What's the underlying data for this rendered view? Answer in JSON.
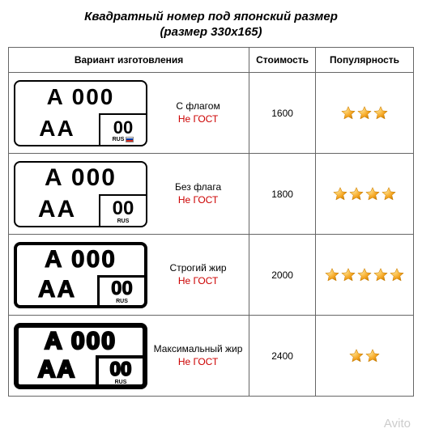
{
  "title": "Квадратный номер под японский размер",
  "subtitle": "(размер 330х165)",
  "headers": {
    "variant": "Вариант изготовления",
    "cost": "Стоимость",
    "popularity": "Популярность"
  },
  "plate_text": {
    "top": "A 000",
    "bottom_left": "AA",
    "region": "00",
    "rus": "RUS"
  },
  "rows": [
    {
      "desc_line1": "С флагом",
      "desc_line2": "Не ГОСТ",
      "cost": "1600",
      "stars": 3,
      "border_class": "b2",
      "size_class": "s1",
      "flag": true
    },
    {
      "desc_line1": "Без флага",
      "desc_line2": "Не ГОСТ",
      "cost": "1800",
      "stars": 4,
      "border_class": "b2",
      "size_class": "s2",
      "flag": false
    },
    {
      "desc_line1": "Строгий жир",
      "desc_line2": "Не ГОСТ",
      "cost": "2000",
      "stars": 5,
      "border_class": "b3",
      "size_class": "s3",
      "flag": false
    },
    {
      "desc_line1": "Максимальный жир",
      "desc_line2": "Не ГОСТ",
      "cost": "2400",
      "stars": 2,
      "border_class": "b4",
      "size_class": "s4",
      "flag": false
    }
  ],
  "colors": {
    "star_fill": "#f5a623",
    "star_stroke": "#c77b00",
    "not_gost": "#cc0000",
    "border": "#666666"
  },
  "watermark": "Avito"
}
